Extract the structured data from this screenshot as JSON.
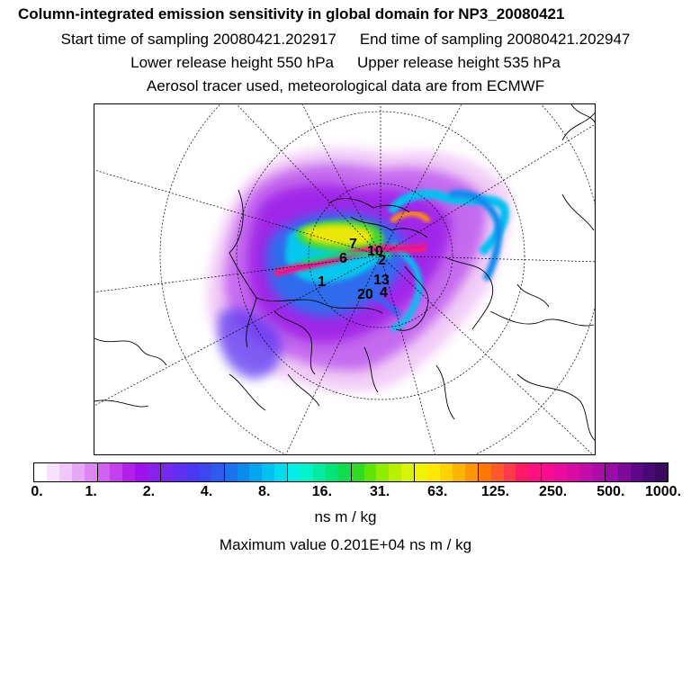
{
  "header": {
    "title": "Column-integrated emission sensitivity in global domain for NP3_20080421",
    "start_label": "Start time of sampling 20080421.202917",
    "end_label": "End time of sampling 20080421.202947",
    "lower_label": "Lower release height  550 hPa",
    "upper_label": "Upper release height  535 hPa",
    "tracer_label": "Aerosol tracer used, meteorological data are from ECMWF"
  },
  "map": {
    "projection": "polar stereographic, north pole",
    "trajectory_markers": [
      "1",
      "2",
      "6",
      "7",
      "10",
      "13",
      "20",
      "4"
    ]
  },
  "colorbar": {
    "tick_labels": [
      "0.",
      "1.",
      "2.",
      "4.",
      "8.",
      "16.",
      "31.",
      "63.",
      "125.",
      "250.",
      "500.",
      "1000."
    ],
    "colors": [
      "#ffffff",
      "#f6e2fb",
      "#efc8f8",
      "#e6a8f4",
      "#dc86f1",
      "#d062ee",
      "#c440ec",
      "#b220ea",
      "#a010ea",
      "#8a20ee",
      "#7428f0",
      "#5e30f2",
      "#4a38f2",
      "#3a48f0",
      "#2a5cef",
      "#1a72ee",
      "#0a8cee",
      "#00a6f0",
      "#00c2f0",
      "#00dcee",
      "#00f0e8",
      "#00f4c8",
      "#00eca0",
      "#00e47a",
      "#10dc50",
      "#30dc20",
      "#60e400",
      "#90ec00",
      "#b8f000",
      "#d8f400",
      "#f0f400",
      "#ffe800",
      "#ffd200",
      "#ffb400",
      "#ff9600",
      "#ff7800",
      "#ff5a28",
      "#ff3a4a",
      "#ff1a68",
      "#ff1080",
      "#f80c90",
      "#ea0c9c",
      "#d80ca4",
      "#c40ca8",
      "#ae0ca8",
      "#960ca4",
      "#7a0a98",
      "#5e0888",
      "#480878",
      "#3a0a5e"
    ],
    "units": "ns m / kg",
    "max_label": "Maximum value  0.201E+04 ns m / kg"
  }
}
